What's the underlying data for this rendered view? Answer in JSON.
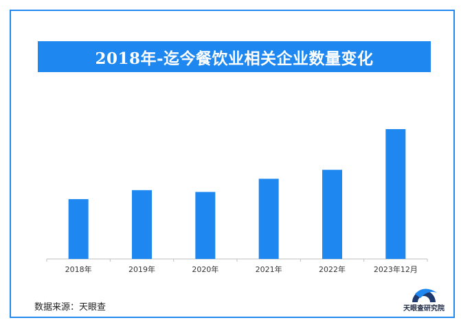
{
  "title": "2018年-迄今餐饮业相关企业数量变化",
  "source": "数据来源：天眼查",
  "logo_text": "天眼查研究院",
  "colors": {
    "accent": "#1e87f0",
    "frame": "#1e87f0",
    "bar": "#1e87f0"
  },
  "chart_data": {
    "type": "bar",
    "categories": [
      "2018年",
      "2019年",
      "2020年",
      "2021年",
      "2022年",
      "2023年12月"
    ],
    "values": [
      100,
      115,
      112,
      134,
      149,
      217
    ],
    "ylim": [
      0,
      217
    ],
    "grid": false,
    "xlabel": "",
    "ylabel": ""
  }
}
